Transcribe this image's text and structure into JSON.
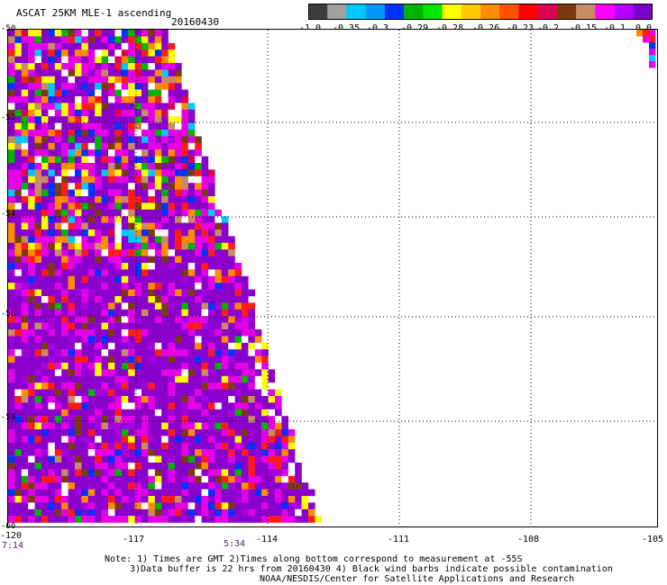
{
  "header": {
    "title": "ASCAT 25KM MLE-1 ascending",
    "date": "20160430"
  },
  "colorbar": {
    "colors": [
      "#3c3c3c",
      "#a0a0a0",
      "#00c8ff",
      "#0096ff",
      "#0032ff",
      "#00b400",
      "#00e600",
      "#ffff00",
      "#ffc800",
      "#ff8c00",
      "#ff5000",
      "#ff0000",
      "#dc0050",
      "#7a3a10",
      "#c88c64",
      "#ff00ff",
      "#b400ff",
      "#7800c8"
    ],
    "labels": [
      "-1.0",
      "-0.35",
      "-0.3",
      "-0.29",
      "-0.28",
      "-0.26",
      "-0.23",
      "-0.2",
      "-0.15",
      "-0.1",
      "0.0"
    ]
  },
  "map": {
    "lat_labels": [
      "-50",
      "-52",
      "-54",
      "-56",
      "-58",
      "-60"
    ],
    "lon_labels": [
      "-120",
      "-117",
      "-114",
      "-111",
      "-108",
      "-105"
    ],
    "time_labels": [
      "7:14",
      "5:34"
    ],
    "palette": {
      "purple": "#8a00cc",
      "magenta": "#e600e6",
      "violet": "#a400e0",
      "orange": "#ff8c00",
      "red": "#ff1a1a",
      "yellow": "#ffff00",
      "green": "#00b400",
      "blue": "#0032ff",
      "cyan": "#00c8ff",
      "brown": "#7a3a10",
      "tan": "#c88c64",
      "white": "#ffffff",
      "crimson": "#dc0050"
    }
  },
  "notes": {
    "line1": "Note: 1) Times are GMT 2)Times along bottom correspond to measurement at -55S",
    "line2": "3)Data buffer is 22 hrs from 20160430 4) Black wind barbs indicate possible contamination",
    "line3": "NOAA/NESDIS/Center for Satellite Applications and Research"
  }
}
